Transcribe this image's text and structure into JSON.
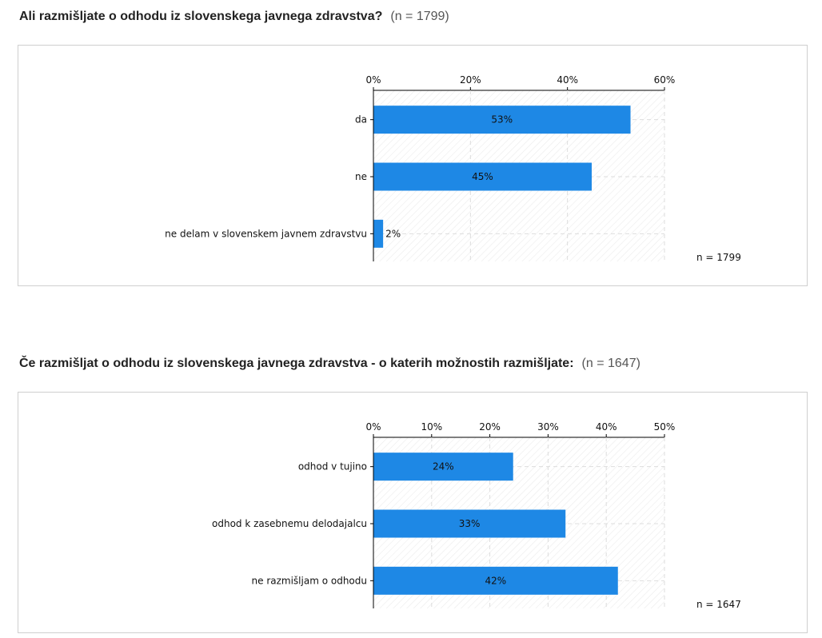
{
  "colors": {
    "bar": "#1e88e5",
    "grid": "#dddddd",
    "axis": "#000000"
  },
  "charts": {
    "q1": {
      "question": "Ali razmišljate o odhodu iz slovenskega javnega zdravstva?",
      "n_label": "(n = 1799)"
    },
    "q2": {
      "question": "Če razmišljat o odhodu iz slovenskega javnega zdravstva - o katerih možnostih razmišljate:",
      "n_label": "(n = 1647)"
    }
  },
  "chart_data": [
    {
      "type": "bar",
      "orientation": "horizontal",
      "categories": [
        "da",
        "ne",
        "ne delam v slovenskem javnem zdravstvu"
      ],
      "values": [
        53,
        45,
        2
      ],
      "value_labels": [
        "53%",
        "45%",
        "2%"
      ],
      "xlim": [
        0,
        60
      ],
      "xticks": [
        0,
        20,
        40,
        60
      ],
      "xtick_labels": [
        "0%",
        "20%",
        "40%",
        "60%"
      ],
      "annotation": "n = 1799",
      "unit": "%"
    },
    {
      "type": "bar",
      "orientation": "horizontal",
      "categories": [
        "odhod v tujino",
        "odhod k zasebnemu delodajalcu",
        "ne razmišljam o odhodu"
      ],
      "values": [
        24,
        33,
        42
      ],
      "value_labels": [
        "24%",
        "33%",
        "42%"
      ],
      "xlim": [
        0,
        50
      ],
      "xticks": [
        0,
        10,
        20,
        30,
        40,
        50
      ],
      "xtick_labels": [
        "0%",
        "10%",
        "20%",
        "30%",
        "40%",
        "50%"
      ],
      "annotation": "n = 1647",
      "unit": "%"
    }
  ]
}
